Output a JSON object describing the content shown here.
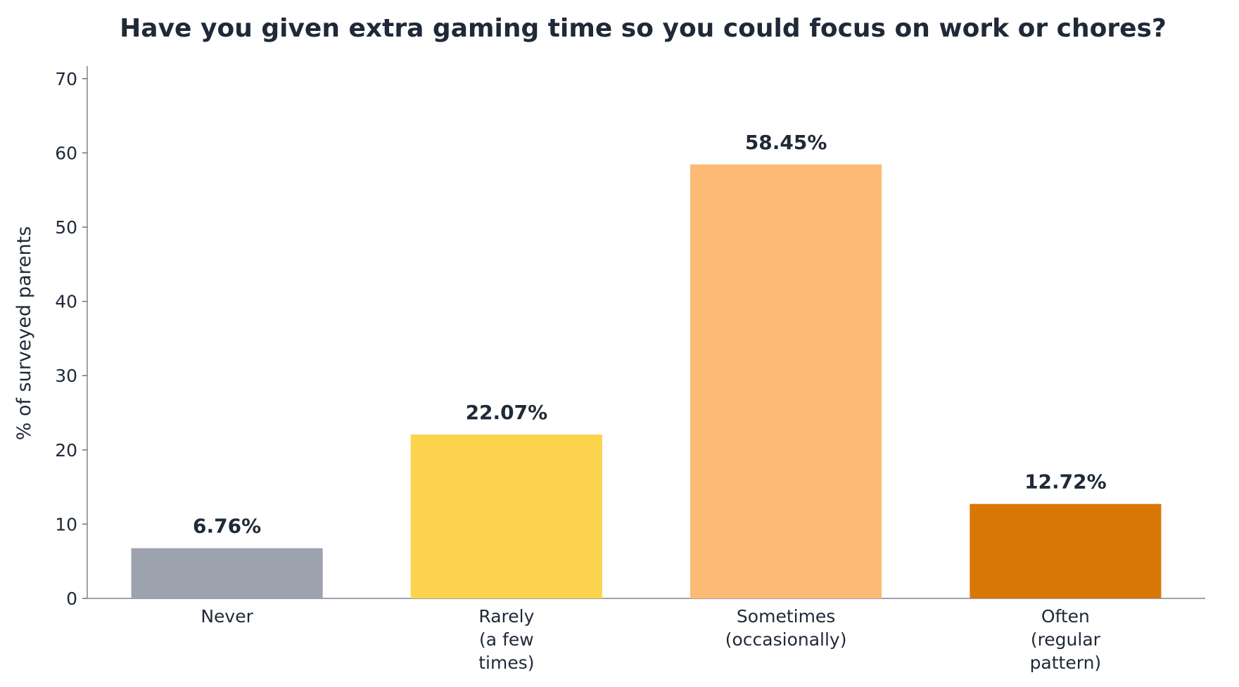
{
  "chart_data": {
    "type": "bar",
    "title": "Have you given extra gaming time so you could focus on work or chores?",
    "xlabel": "",
    "ylabel": "% of surveyed parents",
    "categories": [
      [
        "Never"
      ],
      [
        "Rarely",
        "(a few",
        "times)"
      ],
      [
        "Sometimes",
        "(occasionally)"
      ],
      [
        "Often",
        "(regular",
        "pattern)"
      ]
    ],
    "values": [
      6.76,
      22.07,
      58.45,
      12.72
    ],
    "data_labels": [
      "6.76%",
      "22.07%",
      "58.45%",
      "12.72%"
    ],
    "colors": [
      "#9ca3af",
      "#fcd34d",
      "#fdba74",
      "#d97706"
    ],
    "ylim": [
      0,
      71.5
    ],
    "yticks": [
      0,
      10,
      20,
      30,
      40,
      50,
      60,
      70
    ],
    "grid": false,
    "legend": "none"
  }
}
